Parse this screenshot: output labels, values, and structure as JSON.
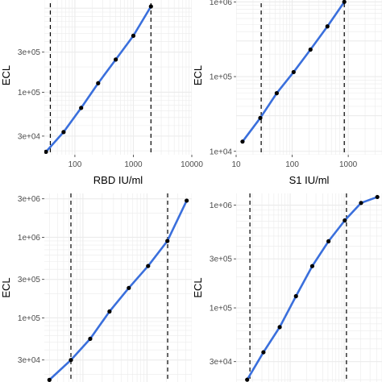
{
  "chart_data": [
    {
      "type": "line",
      "xlabel": "RBD IU/ml",
      "ylabel": "ECL",
      "x_scale": "log10",
      "y_scale": "log10",
      "xlim": [
        30,
        10000
      ],
      "ylim": [
        18000,
        1400000
      ],
      "x_ticks": [
        {
          "value": 100,
          "label": "100"
        },
        {
          "value": 1000,
          "label": "1000"
        },
        {
          "value": 10000,
          "label": "10000"
        }
      ],
      "y_ticks": [
        {
          "value": 30000,
          "label": "3e+04"
        },
        {
          "value": 100000,
          "label": "1e+05"
        },
        {
          "value": 300000,
          "label": "3e+05"
        }
      ],
      "vlines": [
        38,
        2000
      ],
      "grid": true,
      "series": [
        {
          "x": [
            32,
            64,
            128,
            250,
            500,
            1000,
            2000
          ],
          "y": [
            19500,
            33500,
            65000,
            128000,
            245000,
            470000,
            1050000
          ]
        }
      ]
    },
    {
      "type": "line",
      "xlabel": "S1 IU/ml",
      "ylabel": "ECL",
      "x_scale": "log10",
      "y_scale": "log10",
      "xlim": [
        10,
        4000
      ],
      "ylim": [
        9000,
        1200000
      ],
      "x_ticks": [
        {
          "value": 10,
          "label": "10"
        },
        {
          "value": 100,
          "label": "100"
        },
        {
          "value": 1000,
          "label": "1000"
        }
      ],
      "y_ticks": [
        {
          "value": 10000,
          "label": "1e+04"
        },
        {
          "value": 100000,
          "label": "1e+05"
        },
        {
          "value": 1000000,
          "label": "1e+06"
        }
      ],
      "vlines": [
        28,
        850
      ],
      "grid": true,
      "series": [
        {
          "x": [
            13,
            27,
            53,
            106,
            212,
            425,
            850
          ],
          "y": [
            13500,
            28000,
            60000,
            115000,
            230000,
            470000,
            1000000
          ]
        }
      ]
    },
    {
      "type": "line",
      "xlabel": "",
      "ylabel": "ECL",
      "x_scale": "log10",
      "y_scale": "log10",
      "xlim": [
        25,
        5000
      ],
      "ylim": [
        16000,
        3500000
      ],
      "y_ticks": [
        {
          "value": 30000,
          "label": "3e+04"
        },
        {
          "value": 100000,
          "label": "1e+05"
        },
        {
          "value": 300000,
          "label": "3e+05"
        },
        {
          "value": 1000000,
          "label": "1e+06"
        },
        {
          "value": 3000000,
          "label": "3e+06"
        }
      ],
      "vlines": [
        65,
        2100
      ],
      "grid": true,
      "series": [
        {
          "x": [
            30,
            65,
            130,
            260,
            520,
            1040,
            2080,
            4160
          ],
          "y": [
            17000,
            30000,
            55000,
            120000,
            235000,
            440000,
            900000,
            2850000
          ]
        }
      ]
    },
    {
      "type": "line",
      "xlabel": "",
      "ylabel": "ECL",
      "x_scale": "log10",
      "y_scale": "log10",
      "xlim": [
        10,
        5000
      ],
      "ylim": [
        19000,
        1300000
      ],
      "y_ticks": [
        {
          "value": 30000,
          "label": "3e+04"
        },
        {
          "value": 100000,
          "label": "1e+05"
        },
        {
          "value": 300000,
          "label": "3e+05"
        },
        {
          "value": 1000000,
          "label": "1e+06"
        }
      ],
      "vlines": [
        18,
        1100
      ],
      "grid": true,
      "series": [
        {
          "x": [
            16,
            32,
            64,
            128,
            256,
            512,
            1024,
            2048,
            4096
          ],
          "y": [
            20000,
            37000,
            65000,
            130000,
            255000,
            445000,
            710000,
            1050000,
            1200000
          ]
        }
      ]
    }
  ]
}
